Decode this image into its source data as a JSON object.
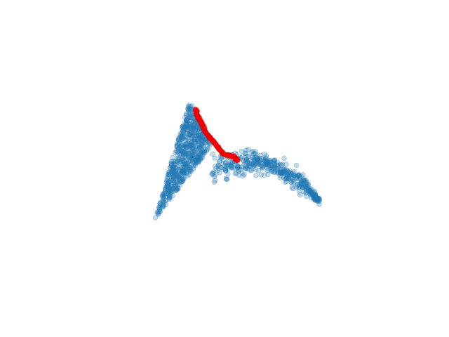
{
  "chart_data": {
    "type": "scatter",
    "title": "",
    "axes_visible": false,
    "grid": false,
    "legend": "none",
    "colors": {
      "points": "#1f77b4",
      "highlighted_path": "#ff0000"
    },
    "regions": [
      {
        "shape": "triangle",
        "vertices": [
          [
            0.3,
            0.15
          ],
          [
            0.41,
            0.4
          ],
          [
            0.12,
            0.82
          ]
        ],
        "count": 620
      },
      {
        "shape": "sheet-curve",
        "from": [
          0.41,
          0.4
        ],
        "to": [
          0.95,
          0.65
        ],
        "count": 430
      }
    ],
    "highlighted_path": [
      [
        0.33,
        0.2
      ],
      [
        0.34,
        0.24
      ],
      [
        0.36,
        0.28
      ],
      [
        0.38,
        0.33
      ],
      [
        0.41,
        0.37
      ],
      [
        0.44,
        0.41
      ],
      [
        0.47,
        0.45
      ],
      [
        0.52,
        0.46
      ],
      [
        0.54,
        0.49
      ]
    ]
  }
}
